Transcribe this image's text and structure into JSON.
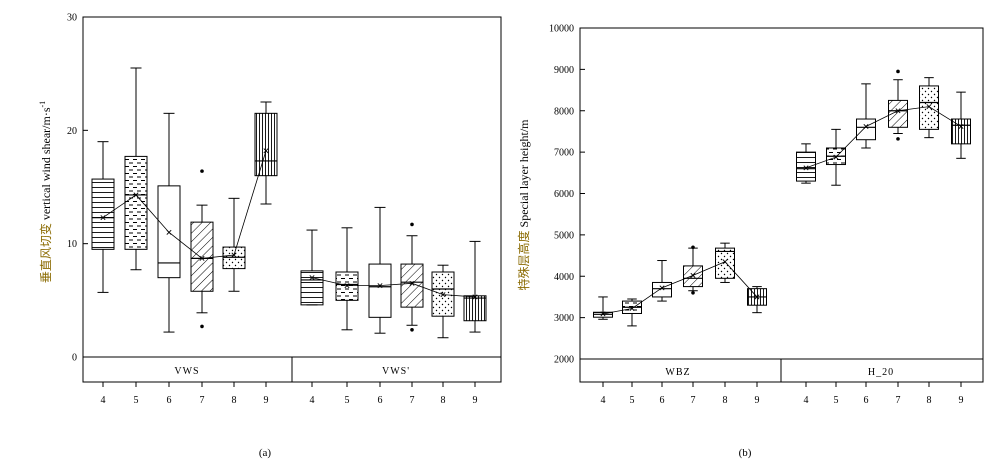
{
  "chart_data": [
    {
      "type": "box",
      "caption": "(a)",
      "ylabel_prefix": "垂直风切变",
      "ylabel_main": " vertical wind shear/m·s",
      "ylabel_sup": "-1",
      "ylim": [
        0,
        30
      ],
      "yticks": [
        0,
        10,
        20,
        30
      ],
      "groups": [
        "VWS",
        "VWS'"
      ],
      "months": [
        "4",
        "5",
        "6",
        "7",
        "8",
        "9"
      ],
      "boxes": [
        {
          "group": "VWS",
          "month": "4",
          "min": 5.7,
          "q1": 9.5,
          "median": 12.3,
          "q3": 15.7,
          "max": 19.0,
          "mean": 12.3,
          "outliers": [],
          "pattern": "hlines"
        },
        {
          "group": "VWS",
          "month": "5",
          "min": 7.7,
          "q1": 9.5,
          "median": 14.3,
          "q3": 17.7,
          "max": 25.5,
          "mean": 14.3,
          "outliers": [],
          "pattern": "dashes"
        },
        {
          "group": "VWS",
          "month": "6",
          "min": 2.2,
          "q1": 7.0,
          "median": 8.3,
          "q3": 15.1,
          "max": 21.5,
          "mean": 11.0,
          "outliers": [],
          "pattern": "none"
        },
        {
          "group": "VWS",
          "month": "7",
          "min": 3.9,
          "q1": 5.8,
          "median": 8.7,
          "q3": 11.9,
          "max": 13.4,
          "mean": 8.7,
          "outliers": [
            16.4,
            2.7
          ],
          "pattern": "diag"
        },
        {
          "group": "VWS",
          "month": "8",
          "min": 5.8,
          "q1": 7.8,
          "median": 8.8,
          "q3": 9.7,
          "max": 14.0,
          "mean": 9.0,
          "outliers": [],
          "pattern": "dots"
        },
        {
          "group": "VWS",
          "month": "9",
          "min": 13.5,
          "q1": 16.0,
          "median": 17.3,
          "q3": 21.5,
          "max": 22.5,
          "mean": 18.2,
          "outliers": [],
          "pattern": "vlines"
        },
        {
          "group": "VWS'",
          "month": "4",
          "min": 4.6,
          "q1": 4.6,
          "median": 6.8,
          "q3": 7.6,
          "max": 11.2,
          "mean": 7.0,
          "outliers": [],
          "pattern": "hlines"
        },
        {
          "group": "VWS'",
          "month": "5",
          "min": 2.4,
          "q1": 5.0,
          "median": 6.4,
          "q3": 7.5,
          "max": 11.4,
          "mean": 6.3,
          "outliers": [],
          "pattern": "dashes"
        },
        {
          "group": "VWS'",
          "month": "6",
          "min": 2.1,
          "q1": 3.5,
          "median": 6.2,
          "q3": 8.2,
          "max": 13.2,
          "mean": 6.3,
          "outliers": [],
          "pattern": "none"
        },
        {
          "group": "VWS'",
          "month": "7",
          "min": 2.8,
          "q1": 4.4,
          "median": 6.6,
          "q3": 8.2,
          "max": 10.7,
          "mean": 6.5,
          "outliers": [
            11.7,
            2.4
          ],
          "pattern": "diag"
        },
        {
          "group": "VWS'",
          "month": "8",
          "min": 1.7,
          "q1": 3.6,
          "median": 6.0,
          "q3": 7.5,
          "max": 8.1,
          "mean": 5.5,
          "outliers": [],
          "pattern": "dots"
        },
        {
          "group": "VWS'",
          "month": "9",
          "min": 2.2,
          "q1": 3.2,
          "median": 5.2,
          "q3": 5.4,
          "max": 10.2,
          "mean": 5.3,
          "outliers": [],
          "pattern": "vlines"
        }
      ]
    },
    {
      "type": "box",
      "caption": "(b)",
      "ylabel_prefix": "特殊层高度",
      "ylabel_main": " Special layer height/m",
      "ylabel_sup": "",
      "ylim": [
        2000,
        10000
      ],
      "yticks": [
        2000,
        3000,
        4000,
        5000,
        6000,
        7000,
        8000,
        9000,
        10000
      ],
      "groups": [
        "WBZ",
        "H_20"
      ],
      "months": [
        "4",
        "5",
        "6",
        "7",
        "8",
        "9"
      ],
      "boxes": [
        {
          "group": "WBZ",
          "month": "4",
          "min": 2960,
          "q1": 3010,
          "median": 3080,
          "q3": 3130,
          "max": 3500,
          "mean": 3090,
          "outliers": [],
          "pattern": "hlines"
        },
        {
          "group": "WBZ",
          "month": "5",
          "min": 2800,
          "q1": 3100,
          "median": 3250,
          "q3": 3400,
          "max": 3450,
          "mean": 3220,
          "outliers": [],
          "pattern": "dashes"
        },
        {
          "group": "WBZ",
          "month": "6",
          "min": 3400,
          "q1": 3500,
          "median": 3700,
          "q3": 3850,
          "max": 4380,
          "mean": 3720,
          "outliers": [],
          "pattern": "none"
        },
        {
          "group": "WBZ",
          "month": "7",
          "min": 3650,
          "q1": 3750,
          "median": 3950,
          "q3": 4250,
          "max": 4680,
          "mean": 4020,
          "outliers": [
            4700,
            3600
          ],
          "pattern": "diag"
        },
        {
          "group": "WBZ",
          "month": "8",
          "min": 3850,
          "q1": 3950,
          "median": 4600,
          "q3": 4680,
          "max": 4800,
          "mean": 4350,
          "outliers": [],
          "pattern": "dots"
        },
        {
          "group": "WBZ",
          "month": "9",
          "min": 3120,
          "q1": 3300,
          "median": 3500,
          "q3": 3700,
          "max": 3750,
          "mean": 3500,
          "outliers": [],
          "pattern": "vlines"
        },
        {
          "group": "H_20",
          "month": "4",
          "min": 6250,
          "q1": 6300,
          "median": 6600,
          "q3": 7000,
          "max": 7200,
          "mean": 6620,
          "outliers": [],
          "pattern": "hlines"
        },
        {
          "group": "H_20",
          "month": "5",
          "min": 6200,
          "q1": 6700,
          "median": 6900,
          "q3": 7100,
          "max": 7550,
          "mean": 6880,
          "outliers": [],
          "pattern": "dashes"
        },
        {
          "group": "H_20",
          "month": "6",
          "min": 7100,
          "q1": 7300,
          "median": 7600,
          "q3": 7800,
          "max": 8650,
          "mean": 7620,
          "outliers": [],
          "pattern": "none"
        },
        {
          "group": "H_20",
          "month": "7",
          "min": 7450,
          "q1": 7600,
          "median": 8000,
          "q3": 8250,
          "max": 8750,
          "mean": 8000,
          "outliers": [
            8950,
            7320
          ],
          "pattern": "diag"
        },
        {
          "group": "H_20",
          "month": "8",
          "min": 7350,
          "q1": 7550,
          "median": 8200,
          "q3": 8600,
          "max": 8800,
          "mean": 8100,
          "outliers": [],
          "pattern": "dots"
        },
        {
          "group": "H_20",
          "month": "9",
          "min": 6850,
          "q1": 7200,
          "median": 7650,
          "q3": 7800,
          "max": 8450,
          "mean": 7620,
          "outliers": [],
          "pattern": "vlines"
        }
      ]
    }
  ]
}
